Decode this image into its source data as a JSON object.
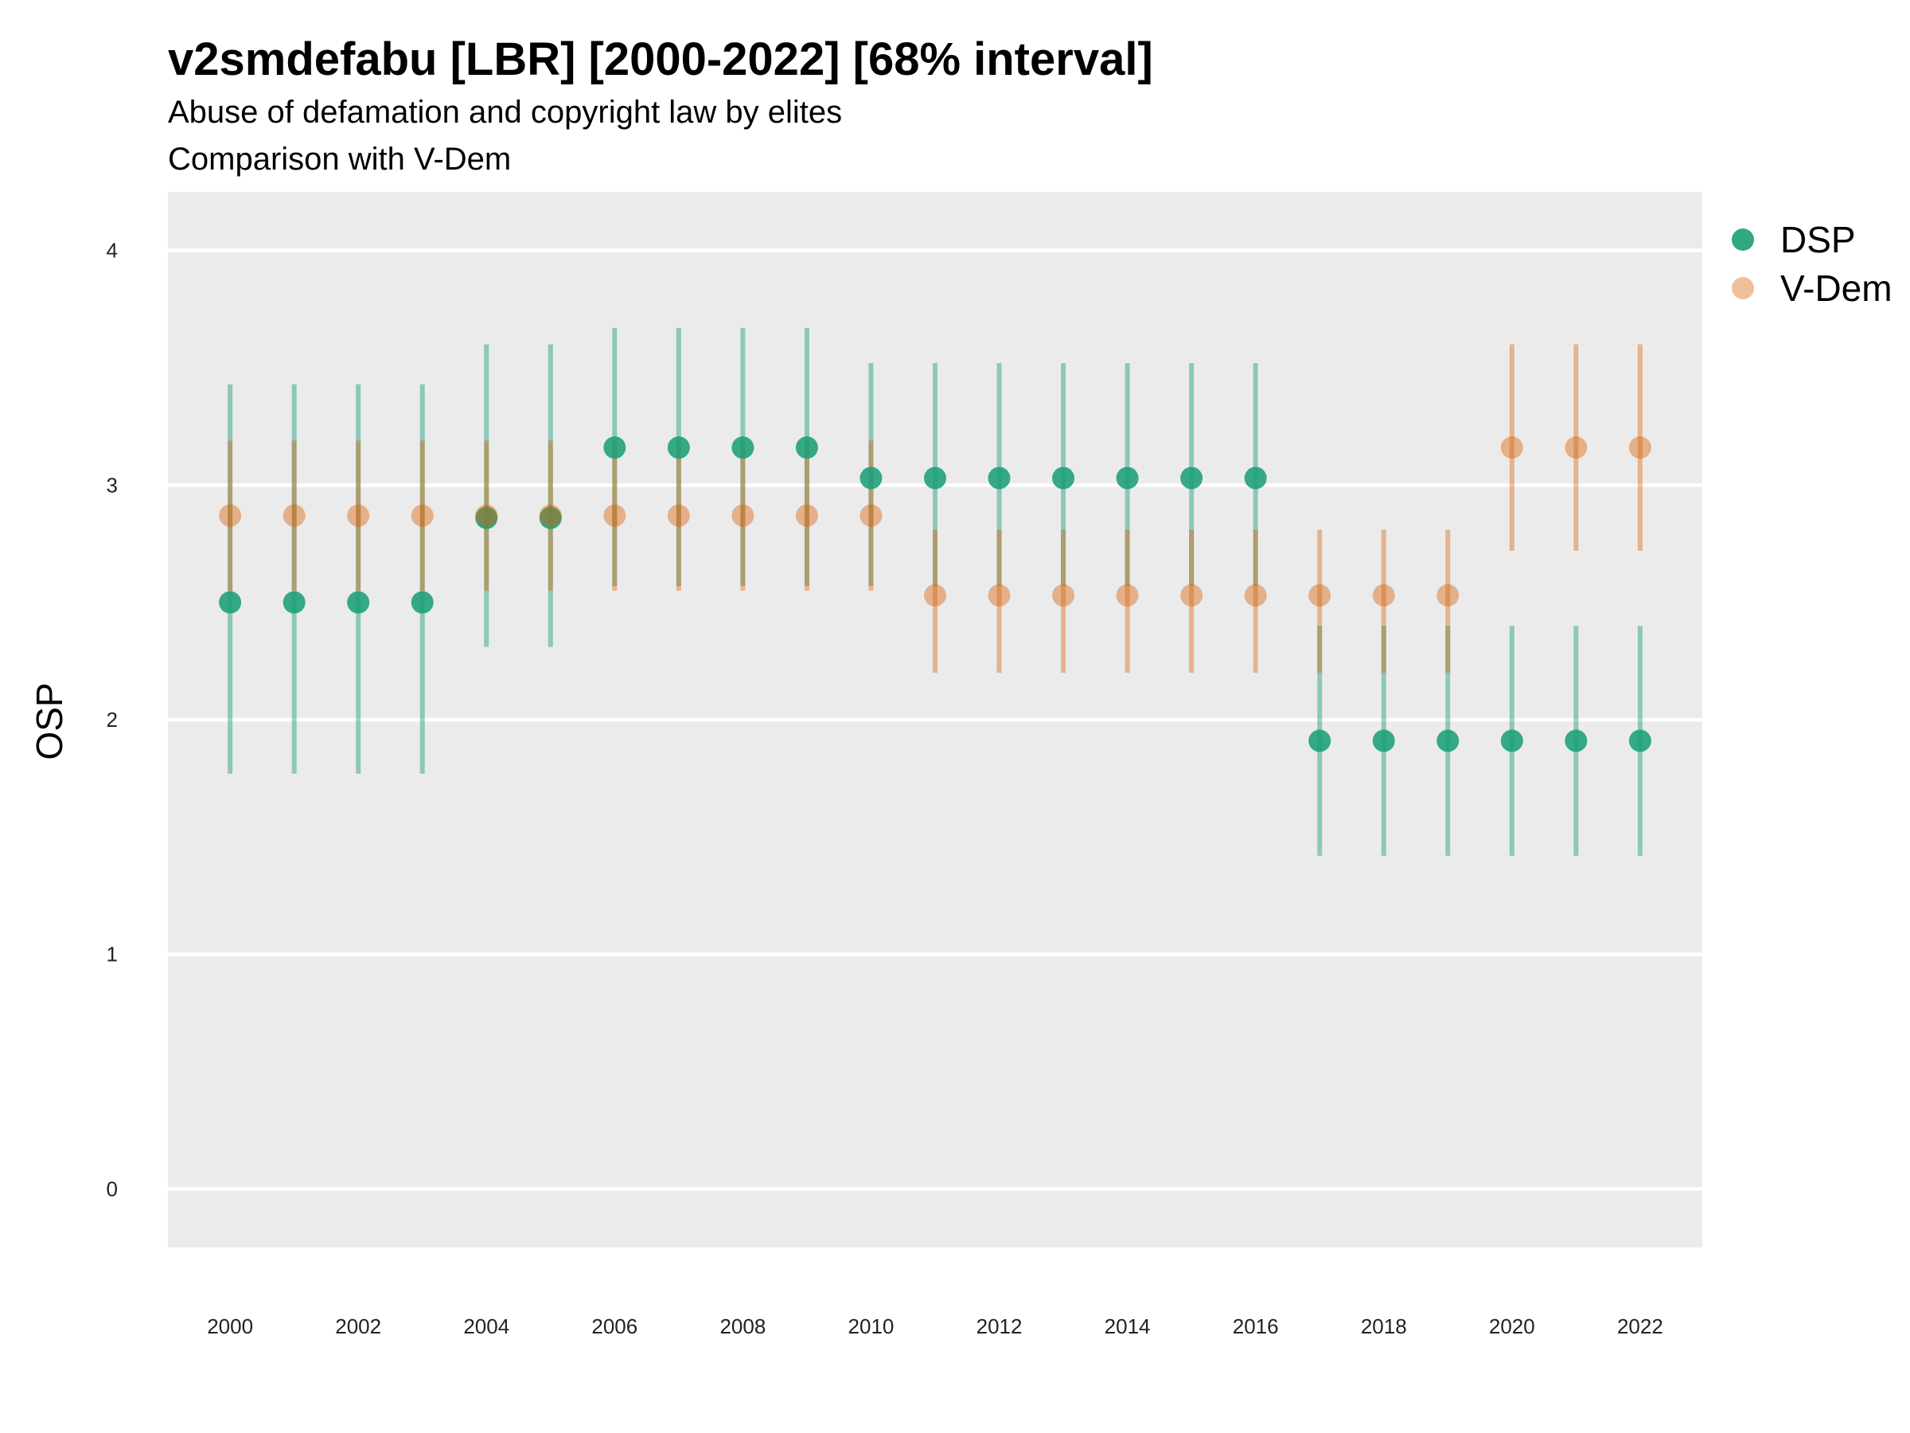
{
  "chart_data": {
    "type": "scatter",
    "title": "v2smdefabu [LBR] [2000-2022] [68% interval]",
    "subtitle_lines": [
      "Abuse of defamation and copyright law by elites",
      "Comparison with V-Dem"
    ],
    "xlabel": "",
    "ylabel": "OSP",
    "ylim": [
      -0.25,
      4.25
    ],
    "yticks": [
      0,
      1,
      2,
      3,
      4
    ],
    "xticks": [
      2000,
      2002,
      2004,
      2006,
      2008,
      2010,
      2012,
      2014,
      2016,
      2018,
      2020,
      2022
    ],
    "x": [
      2000,
      2001,
      2002,
      2003,
      2004,
      2005,
      2006,
      2007,
      2008,
      2009,
      2010,
      2011,
      2012,
      2013,
      2014,
      2015,
      2016,
      2017,
      2018,
      2019,
      2020,
      2021,
      2022
    ],
    "grid": true,
    "legend_position": "right",
    "series": [
      {
        "name": "DSP",
        "color": "#1b9e77",
        "values": [
          2.5,
          2.5,
          2.5,
          2.5,
          2.86,
          2.86,
          3.16,
          3.16,
          3.16,
          3.16,
          3.03,
          3.03,
          3.03,
          3.03,
          3.03,
          3.03,
          3.03,
          1.91,
          1.91,
          1.91,
          1.91,
          1.91,
          1.91
        ],
        "lower": [
          1.77,
          1.77,
          1.77,
          1.77,
          2.31,
          2.31,
          2.57,
          2.57,
          2.57,
          2.57,
          2.57,
          2.57,
          2.57,
          2.57,
          2.57,
          2.57,
          2.57,
          1.42,
          1.42,
          1.42,
          1.42,
          1.42,
          1.42
        ],
        "upper": [
          3.43,
          3.43,
          3.43,
          3.43,
          3.6,
          3.6,
          3.67,
          3.67,
          3.67,
          3.67,
          3.52,
          3.52,
          3.52,
          3.52,
          3.52,
          3.52,
          3.52,
          2.4,
          2.4,
          2.4,
          2.4,
          2.4,
          2.4
        ]
      },
      {
        "name": "V-Dem",
        "color": "#d95f02",
        "values": [
          2.87,
          2.87,
          2.87,
          2.87,
          2.87,
          2.87,
          2.87,
          2.87,
          2.87,
          2.87,
          2.87,
          2.53,
          2.53,
          2.53,
          2.53,
          2.53,
          2.53,
          2.53,
          2.53,
          2.53,
          3.16,
          3.16,
          3.16
        ],
        "lower": [
          2.55,
          2.55,
          2.55,
          2.55,
          2.55,
          2.55,
          2.55,
          2.55,
          2.55,
          2.55,
          2.55,
          2.2,
          2.2,
          2.2,
          2.2,
          2.2,
          2.2,
          2.2,
          2.2,
          2.2,
          2.72,
          2.72,
          2.72
        ],
        "upper": [
          3.19,
          3.19,
          3.19,
          3.19,
          3.19,
          3.19,
          3.19,
          3.19,
          3.19,
          3.19,
          3.19,
          2.81,
          2.81,
          2.81,
          2.81,
          2.81,
          2.81,
          2.81,
          2.81,
          2.81,
          3.6,
          3.6,
          3.6
        ]
      }
    ]
  }
}
